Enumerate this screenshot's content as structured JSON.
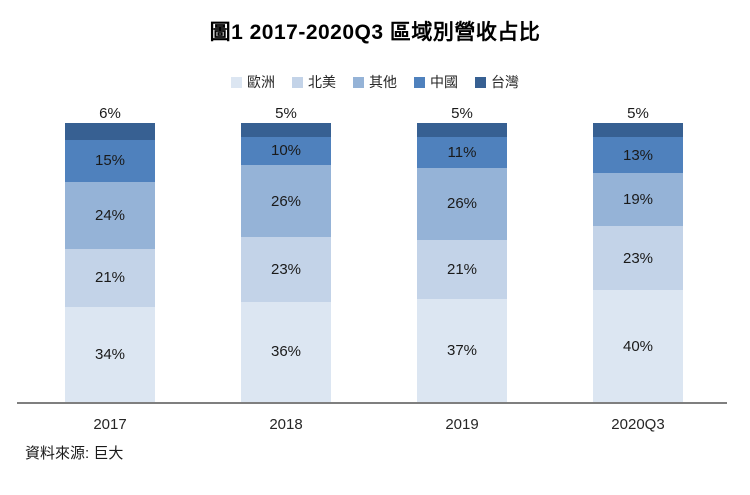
{
  "chart_data": {
    "type": "bar",
    "subtype": "stacked-100-percent",
    "title": "圖1 2017-2020Q3 區域別營收占比",
    "categories": [
      "2017",
      "2018",
      "2019",
      "2020Q3"
    ],
    "series": [
      {
        "name": "歐洲",
        "color": "#dce6f2",
        "values": [
          34,
          36,
          37,
          40
        ]
      },
      {
        "name": "北美",
        "color": "#c3d3e8",
        "values": [
          21,
          23,
          21,
          23
        ]
      },
      {
        "name": "其他",
        "color": "#95b3d7",
        "values": [
          24,
          26,
          26,
          19
        ]
      },
      {
        "name": "中國",
        "color": "#4f81bd",
        "values": [
          15,
          10,
          11,
          13
        ]
      },
      {
        "name": "台灣",
        "color": "#376092",
        "values": [
          6,
          5,
          5,
          5
        ]
      }
    ],
    "value_suffix": "%",
    "data_labels": "inside-center, last series shown above bar",
    "legend_position": "top",
    "grid": "off",
    "axis_line_color": "#7f7f7f",
    "ylim": [
      0,
      100
    ],
    "source_note": "資料來源: 巨大"
  }
}
